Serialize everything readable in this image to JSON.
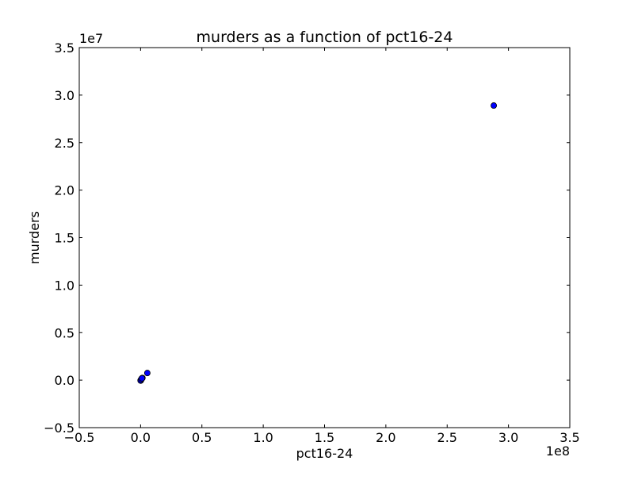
{
  "chart_data": {
    "type": "scatter",
    "title": "murders as a function of pct16-24",
    "xlabel": "pct16-24",
    "ylabel": "murders",
    "xlim": [
      -50000000,
      350000000
    ],
    "ylim": [
      -5000000,
      35000000
    ],
    "x_ticks": [
      -50000000,
      0,
      50000000,
      100000000,
      150000000,
      200000000,
      250000000,
      300000000,
      350000000
    ],
    "x_tick_labels": [
      "−0.5",
      "0.0",
      "0.5",
      "1.0",
      "1.5",
      "2.0",
      "2.5",
      "3.0",
      "3.5"
    ],
    "y_ticks": [
      -5000000,
      0,
      5000000,
      10000000,
      15000000,
      20000000,
      25000000,
      30000000,
      35000000
    ],
    "y_tick_labels": [
      "−0.5",
      "0.0",
      "0.5",
      "1.0",
      "1.5",
      "2.0",
      "2.5",
      "3.0",
      "3.5"
    ],
    "x_offset_label": "1e8",
    "y_offset_label": "1e7",
    "grid": false,
    "marker_color": "#0000ff",
    "series": [
      {
        "x": [
          288000000,
          5500000,
          1500000,
          1000000,
          800000,
          500000,
          300000,
          200000,
          100000,
          0,
          600000,
          1200000
        ],
        "y": [
          28900000,
          750000,
          230000,
          180000,
          120000,
          60000,
          20000,
          -20000,
          -50000,
          -30000,
          90000,
          200000
        ]
      }
    ]
  }
}
